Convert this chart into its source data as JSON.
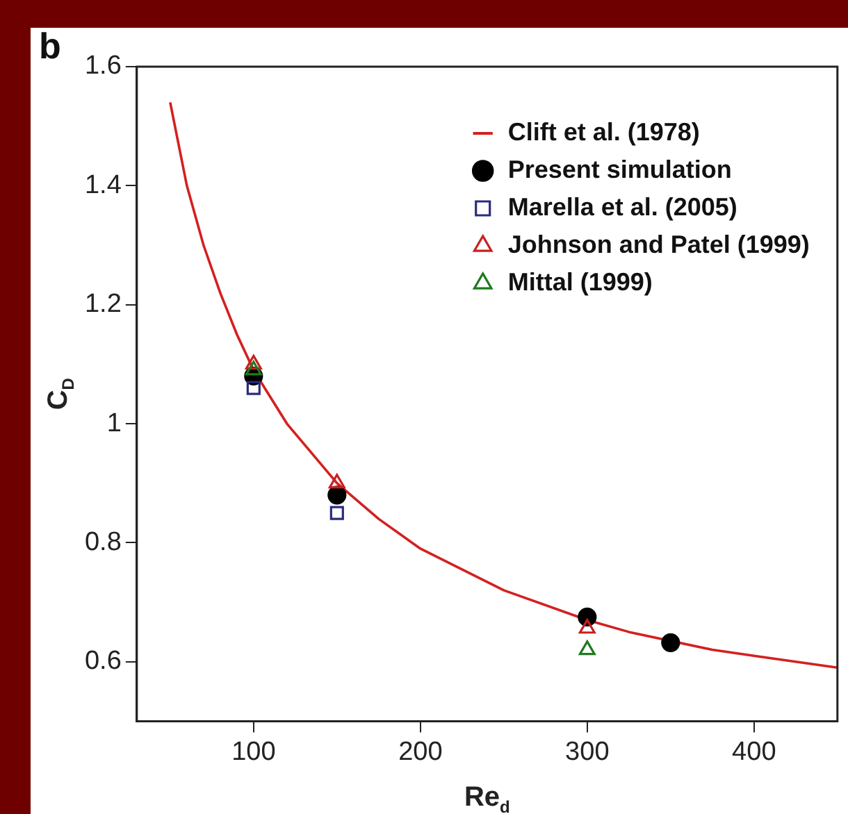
{
  "chart_data": {
    "type": "scatter",
    "xlabel": "Re$_{d}$",
    "ylabel": "C$_{D}$",
    "annotations": [
      "b"
    ],
    "xlim": [
      30,
      450
    ],
    "xticks": [
      100,
      200,
      300,
      400
    ],
    "ylim": [
      0.5,
      1.6
    ],
    "yticks": [
      0.6,
      0.8,
      1,
      1.2,
      1.4,
      1.6
    ],
    "grid": false,
    "legend": "top right",
    "series": [
      {
        "name": "Clift et al. (1978)",
        "type": "line",
        "color": "#d42020",
        "marker": "none",
        "line_style": "solid",
        "x": [
          50,
          60,
          70,
          80,
          90,
          100,
          120,
          150,
          175,
          200,
          250,
          300,
          325,
          375,
          400,
          450
        ],
        "values": [
          1.54,
          1.4,
          1.3,
          1.22,
          1.15,
          1.09,
          1.0,
          0.9,
          0.84,
          0.79,
          0.72,
          0.67,
          0.65,
          0.62,
          0.61,
          0.59
        ]
      },
      {
        "name": "Present simulation",
        "type": "scatter",
        "color": "#000000",
        "marker": "circle",
        "x": [
          100,
          150,
          300,
          350
        ],
        "values": [
          1.08,
          0.88,
          0.675,
          0.632
        ]
      },
      {
        "name": "Marella et al. (2005)",
        "type": "scatter",
        "color": "#2b2b80",
        "marker": "square",
        "x": [
          100,
          150
        ],
        "values": [
          1.06,
          0.85
        ]
      },
      {
        "name": "Johnson and Patel (1999)",
        "type": "scatter",
        "color": "#c82020",
        "marker": "triangle",
        "x": [
          100,
          150,
          300
        ],
        "values": [
          1.1,
          0.9,
          0.656
        ]
      },
      {
        "name": "Mittal (1999)",
        "type": "scatter",
        "color": "#1e7a1e",
        "marker": "triangle",
        "x": [
          100,
          300
        ],
        "values": [
          1.09,
          0.62
        ]
      }
    ]
  }
}
